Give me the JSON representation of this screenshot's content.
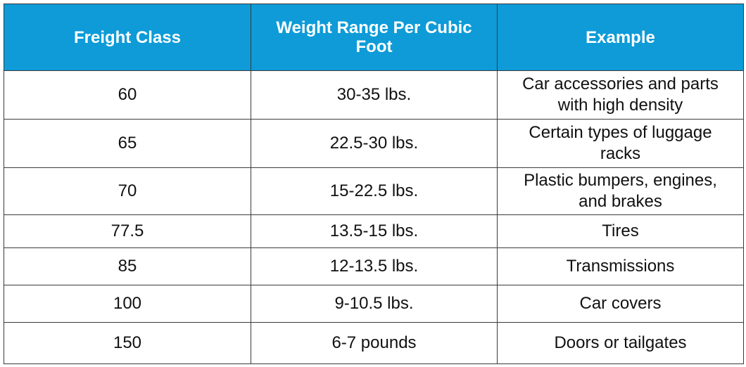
{
  "table": {
    "headers": [
      "Freight Class",
      "Weight Range Per Cubic Foot",
      "Example"
    ],
    "rows": [
      [
        "60",
        "30-35 lbs.",
        "Car accessories and parts with high density"
      ],
      [
        "65",
        "22.5-30 lbs.",
        "Certain types of luggage racks"
      ],
      [
        "70",
        "15-22.5 lbs.",
        "Plastic bumpers, engines, and brakes"
      ],
      [
        "77.5",
        "13.5-15 lbs.",
        "Tires"
      ],
      [
        "85",
        "12-13.5 lbs.",
        "Transmissions"
      ],
      [
        "100",
        "9-10.5 lbs.",
        "Car covers"
      ],
      [
        "150",
        "6-7 pounds",
        "Doors or tailgates"
      ]
    ],
    "colors": {
      "header_background": "#0e9bd8",
      "header_text": "#ffffff",
      "border": "#3a3a3a"
    }
  }
}
